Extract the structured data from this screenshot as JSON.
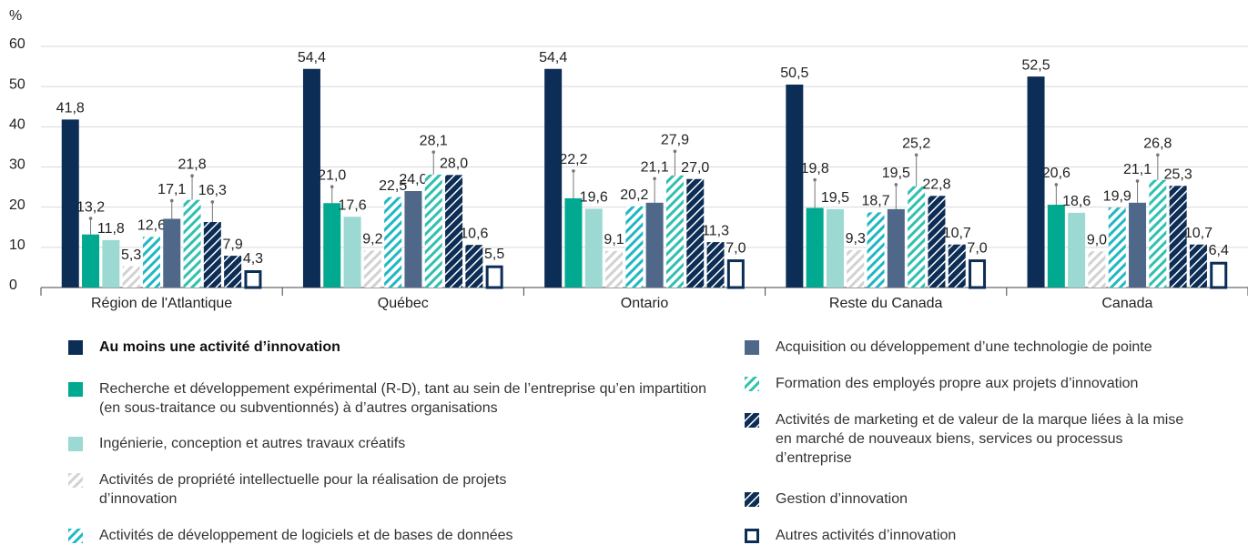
{
  "chart_data": {
    "type": "bar",
    "y_unit": "%",
    "categories": [
      "Région de l'Atlantique",
      "Québec",
      "Ontario",
      "Reste du Canada",
      "Canada"
    ],
    "ylim": [
      0,
      60
    ],
    "yticks": [
      0,
      10,
      20,
      30,
      40,
      50,
      60
    ],
    "grid": true,
    "series": [
      {
        "name": "Au moins une activité d’innovation",
        "color": "#0c2d55",
        "style": "solid",
        "values": [
          41.8,
          54.4,
          54.4,
          50.5,
          52.5
        ],
        "value_labels": [
          "41,8",
          "54,4",
          "54,4",
          "50,5",
          "52,5"
        ]
      },
      {
        "name": "Recherche et développement expérimental (R-D), tant au sein de l’entreprise qu’en impartition (en sous-traitance ou subventionnés) à d’autres organisations",
        "color": "#00a98f",
        "style": "solid",
        "values": [
          13.2,
          21.0,
          22.2,
          19.8,
          20.6
        ],
        "value_labels": [
          "13,2",
          "21,0",
          "22,2",
          "19,8",
          "20,6"
        ],
        "errors": [
          4.0,
          4.1,
          6.8,
          7.0,
          5.0
        ]
      },
      {
        "name": "Ingénierie, conception et autres travaux créatifs",
        "color": "#9bd9d2",
        "style": "solid",
        "values": [
          11.8,
          17.6,
          19.6,
          19.5,
          18.6
        ],
        "value_labels": [
          "11,8",
          "17,6",
          "19,6",
          "19,5",
          "18,6"
        ]
      },
      {
        "name": "Activités de propriété intellectuelle pour la réalisation de projets d’innovation",
        "color": "#d2d2d2",
        "style": "hatch-light",
        "values": [
          5.3,
          9.2,
          9.1,
          9.3,
          9.0
        ],
        "value_labels": [
          "5,3",
          "9,2",
          "9,1",
          "9,3",
          "9,0"
        ]
      },
      {
        "name": "Activités de développement de logiciels et de bases de données",
        "color": "#1fb7c4",
        "style": "hatch-light",
        "values": [
          12.6,
          22.5,
          20.2,
          18.7,
          19.9
        ],
        "value_labels": [
          "12,6",
          "22,5",
          "20,2",
          "18,7",
          "19,9"
        ]
      },
      {
        "name": "Acquisition ou développement d’une technologie de pointe",
        "color": "#4f6889",
        "style": "solid",
        "values": [
          17.1,
          24.0,
          21.1,
          19.5,
          21.1
        ],
        "value_labels": [
          "17,1",
          "24,0",
          "21,1",
          "19,5",
          "21,1"
        ],
        "errors": [
          4.5,
          null,
          6.0,
          6.1,
          5.4
        ]
      },
      {
        "name": "Formation des employés propre aux projets d’innovation",
        "color": "#2fc0b0",
        "style": "hatch-light",
        "values": [
          21.8,
          28.1,
          27.9,
          25.2,
          26.8
        ],
        "value_labels": [
          "21,8",
          "28,1",
          "27,9",
          "25,2",
          "26,8"
        ],
        "errors": [
          6.0,
          5.6,
          6.0,
          7.8,
          6.2
        ]
      },
      {
        "name": "Activités de marketing et de valeur de la marque liées à la mise en marché de nouveaux biens, services ou processus d’entreprise",
        "color": "#0c2d55",
        "style": "hatch-dark",
        "values": [
          16.3,
          28.0,
          27.0,
          22.8,
          25.3
        ],
        "value_labels": [
          "16,3",
          "28,0",
          "27,0",
          "22,8",
          "25,3"
        ],
        "errors": [
          5.0,
          null,
          null,
          null,
          null
        ]
      },
      {
        "name": "Gestion d’innovation",
        "color": "#0c2d55",
        "style": "hatch-dark",
        "values": [
          7.9,
          10.6,
          11.3,
          10.7,
          10.7
        ],
        "value_labels": [
          "7,9",
          "10,6",
          "11,3",
          "10,7",
          "10,7"
        ]
      },
      {
        "name": "Autres activités d’innovation",
        "color": "#0c2d55",
        "style": "outline",
        "values": [
          4.3,
          5.5,
          7.0,
          7.0,
          6.4
        ],
        "value_labels": [
          "4,3",
          "5,5",
          "7,0",
          "7,0",
          "6,4"
        ]
      }
    ]
  }
}
